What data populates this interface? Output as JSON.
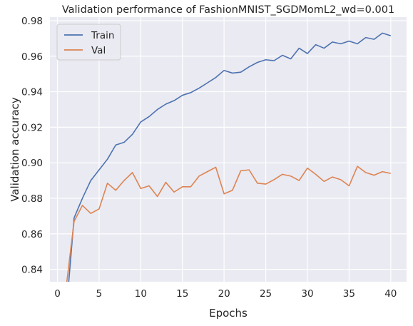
{
  "chart_data": {
    "type": "line",
    "title": "Validation performance of FashionMNIST_SGDMomL2_wd=0.001",
    "xlabel": "Epochs",
    "ylabel": "Validation accuracy",
    "xlim": [
      -0.9,
      41.9
    ],
    "ylim": [
      0.833,
      0.982
    ],
    "xticks": [
      0,
      5,
      10,
      15,
      20,
      25,
      30,
      35,
      40
    ],
    "yticks": [
      0.84,
      0.86,
      0.88,
      0.9,
      0.92,
      0.94,
      0.96,
      0.98
    ],
    "xtick_labels": [
      "0",
      "5",
      "10",
      "15",
      "20",
      "25",
      "30",
      "35",
      "40"
    ],
    "ytick_labels": [
      "0.84",
      "0.86",
      "0.88",
      "0.90",
      "0.92",
      "0.94",
      "0.96",
      "0.98"
    ],
    "grid": true,
    "legend_position": "top-left",
    "background_color": "#eaeaf2",
    "grid_color": "#ffffff",
    "series": [
      {
        "name": "Train",
        "color": "#4c72b0",
        "x": [
          1,
          2,
          3,
          4,
          5,
          6,
          7,
          8,
          9,
          10,
          11,
          12,
          13,
          14,
          15,
          16,
          17,
          18,
          19,
          20,
          21,
          22,
          23,
          24,
          25,
          26,
          27,
          28,
          29,
          30,
          31,
          32,
          33,
          34,
          35,
          36,
          37,
          38,
          39,
          40
        ],
        "y": [
          0.813,
          0.869,
          0.88,
          0.89,
          0.896,
          0.902,
          0.91,
          0.9115,
          0.916,
          0.923,
          0.926,
          0.93,
          0.933,
          0.935,
          0.938,
          0.9395,
          0.942,
          0.945,
          0.948,
          0.952,
          0.9505,
          0.951,
          0.954,
          0.9565,
          0.958,
          0.9575,
          0.9605,
          0.9585,
          0.9645,
          0.9615,
          0.9665,
          0.9645,
          0.968,
          0.967,
          0.9685,
          0.967,
          0.9705,
          0.9695,
          0.973,
          0.9715
        ]
      },
      {
        "name": "Val",
        "color": "#dd8452",
        "x": [
          1,
          2,
          3,
          4,
          5,
          6,
          7,
          8,
          9,
          10,
          11,
          12,
          13,
          14,
          15,
          16,
          17,
          18,
          19,
          20,
          21,
          22,
          23,
          24,
          25,
          26,
          27,
          28,
          29,
          30,
          31,
          32,
          33,
          34,
          35,
          36,
          37,
          38,
          39,
          40
        ],
        "y": [
          0.828,
          0.867,
          0.876,
          0.8715,
          0.874,
          0.8885,
          0.8845,
          0.89,
          0.8945,
          0.8855,
          0.887,
          0.881,
          0.889,
          0.8835,
          0.8865,
          0.8865,
          0.8925,
          0.895,
          0.8975,
          0.8825,
          0.8845,
          0.8955,
          0.896,
          0.8885,
          0.888,
          0.8905,
          0.8935,
          0.8925,
          0.89,
          0.897,
          0.8935,
          0.8895,
          0.892,
          0.8905,
          0.887,
          0.898,
          0.8945,
          0.893,
          0.895,
          0.894
        ]
      }
    ]
  }
}
